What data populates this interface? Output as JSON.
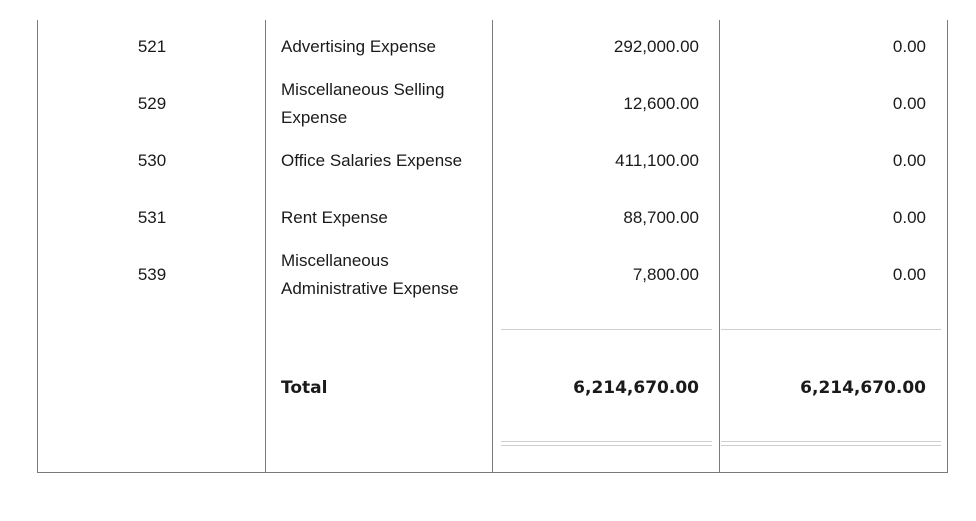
{
  "rows": [
    {
      "account": "521",
      "name": "Advertising Expense",
      "debit": "292,000.00",
      "credit": "0.00"
    },
    {
      "account": "529",
      "name": "Miscellaneous Selling Expense",
      "debit": "12,600.00",
      "credit": "0.00"
    },
    {
      "account": "530",
      "name": "Office Salaries Expense",
      "debit": "411,100.00",
      "credit": "0.00"
    },
    {
      "account": "531",
      "name": "Rent Expense",
      "debit": "88,700.00",
      "credit": "0.00"
    },
    {
      "account": "539",
      "name": "Miscellaneous Administrative Expense",
      "debit": "7,800.00",
      "credit": "0.00"
    }
  ],
  "total": {
    "label": "Total",
    "debit": "6,214,670.00",
    "credit": "6,214,670.00"
  }
}
